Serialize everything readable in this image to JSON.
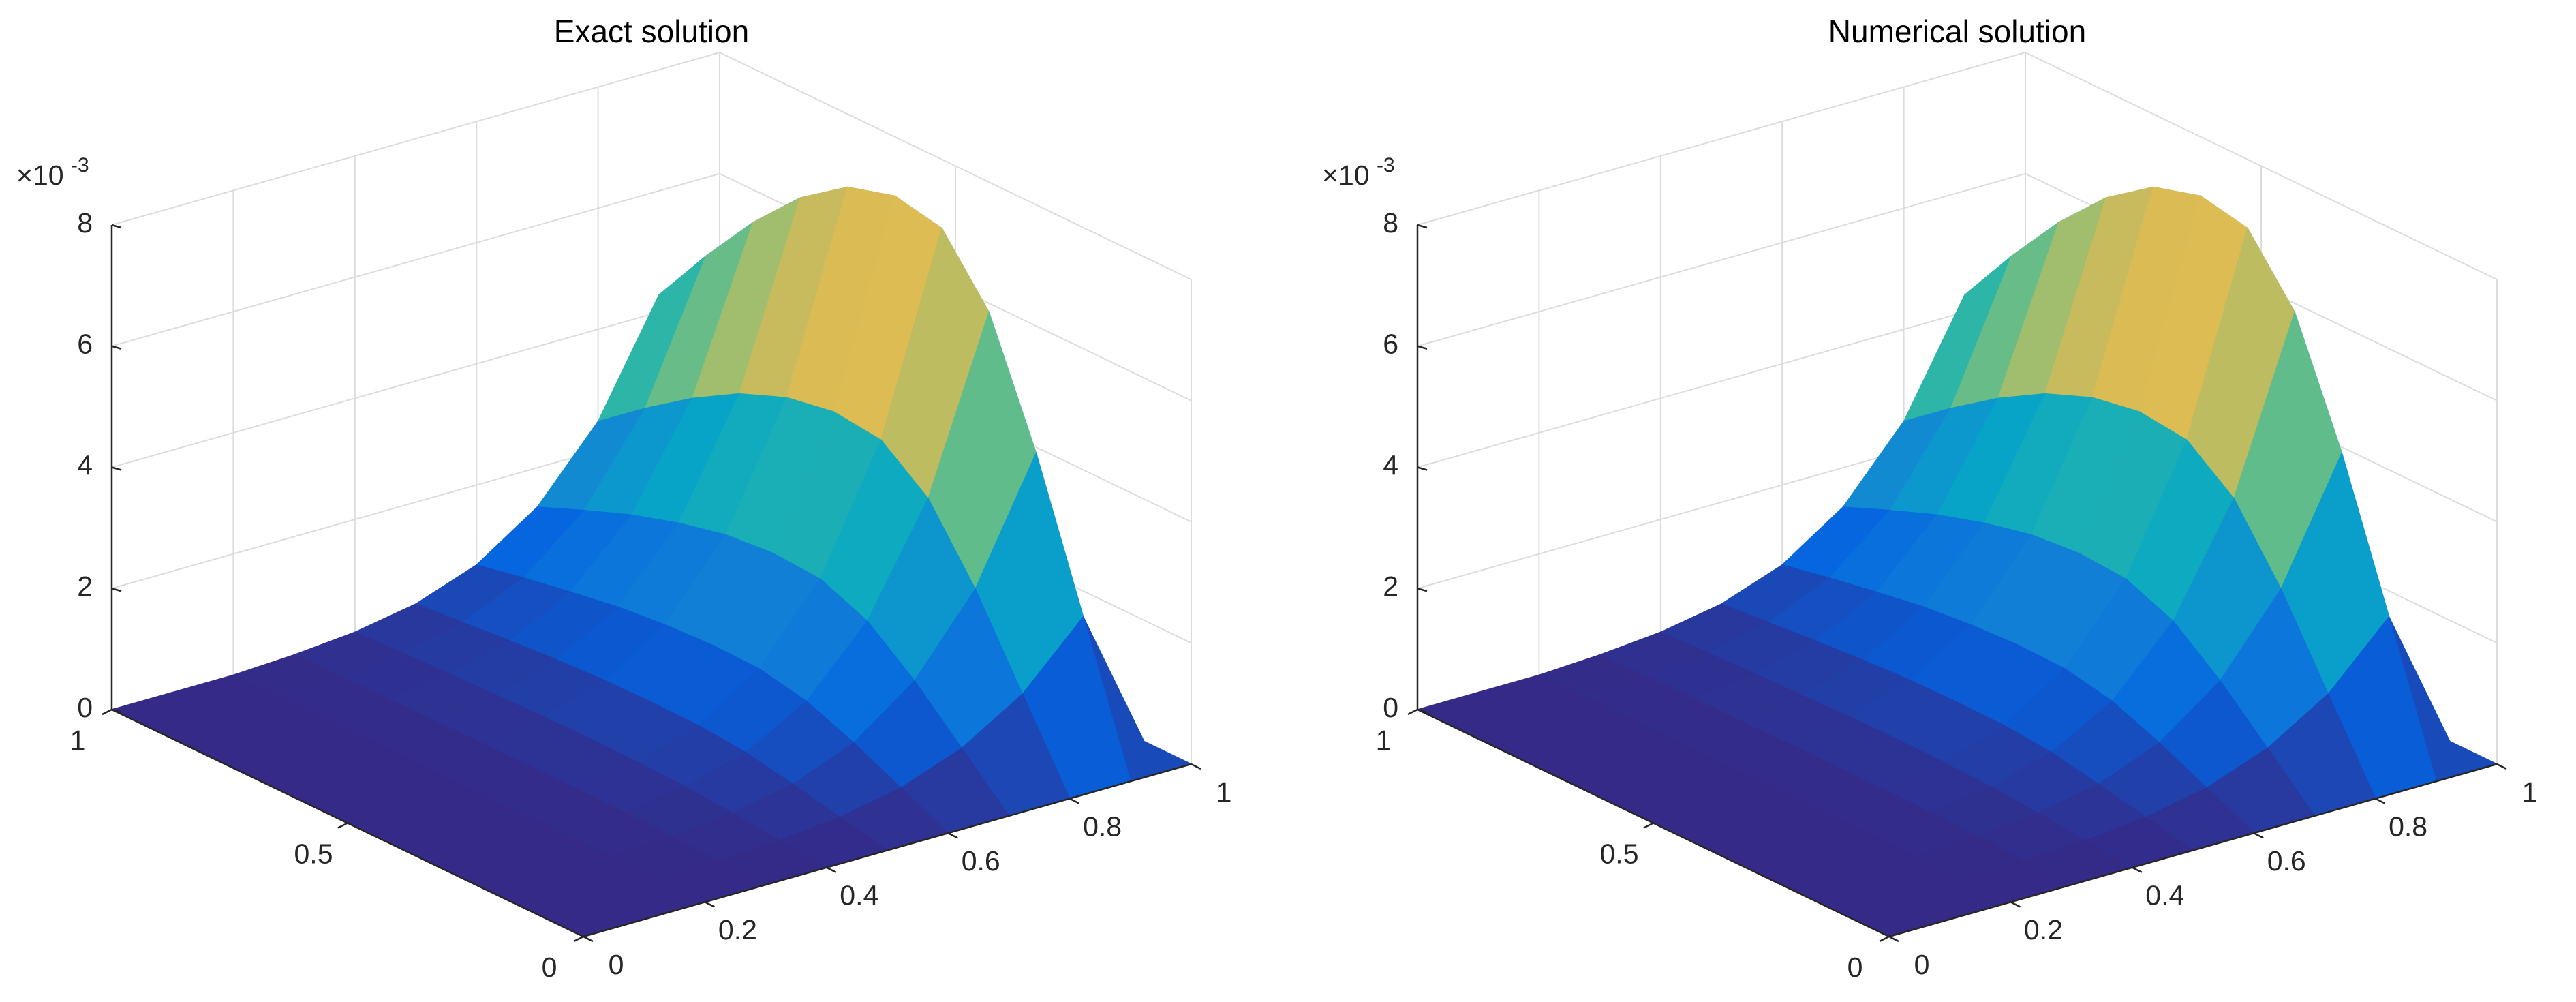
{
  "chart_data": [
    {
      "type": "surface",
      "title": "Exact solution",
      "colormap": "parula",
      "grid": true,
      "z_scale_label": {
        "base": "×10",
        "exponent": "-3"
      },
      "x": [
        0,
        0.1,
        0.2,
        0.3,
        0.4,
        0.5,
        0.6,
        0.7,
        0.8,
        0.9,
        1
      ],
      "y": [
        0,
        0.1,
        0.2,
        0.3,
        0.4,
        0.5,
        0.6,
        0.7,
        0.8,
        0.9,
        1
      ],
      "z": [
        [
          0,
          0,
          0,
          0,
          0,
          0,
          0,
          0,
          0,
          0,
          0
        ],
        [
          0,
          0,
          0,
          0.02,
          0.07,
          0.17,
          0.37,
          0.74,
          1.35,
          2.34,
          0
        ],
        [
          0,
          0,
          0,
          0.05,
          0.15,
          0.34,
          0.74,
          1.48,
          2.71,
          4.67,
          0
        ],
        [
          0,
          0,
          0,
          0.07,
          0.21,
          0.49,
          1.05,
          2.09,
          3.83,
          6.62,
          0
        ],
        [
          0,
          0,
          0,
          0.08,
          0.24,
          0.56,
          1.21,
          2.41,
          4.42,
          7.63,
          0
        ],
        [
          0,
          0,
          0,
          0.08,
          0.25,
          0.57,
          1.23,
          2.46,
          4.51,
          7.79,
          0
        ],
        [
          0,
          0,
          0,
          0.08,
          0.24,
          0.56,
          1.19,
          2.39,
          4.37,
          7.56,
          0
        ],
        [
          0,
          0,
          0,
          0.07,
          0.22,
          0.52,
          1.11,
          2.21,
          4.06,
          7.01,
          0
        ],
        [
          0,
          0,
          0,
          0.07,
          0.2,
          0.46,
          0.98,
          1.97,
          3.61,
          6.23,
          0
        ],
        [
          0,
          0,
          0,
          0.06,
          0.17,
          0.39,
          0.84,
          1.67,
          3.07,
          5.3,
          0
        ],
        [
          0,
          0,
          0,
          0.05,
          0.14,
          0.32,
          0.68,
          1.35,
          2.48,
          4.28,
          0
        ]
      ],
      "xlim": [
        0,
        1
      ],
      "ylim": [
        0,
        1
      ],
      "zlim": [
        0,
        8
      ],
      "xticks": [
        0,
        0.2,
        0.4,
        0.6,
        0.8,
        1
      ],
      "yticks": [
        0,
        0.5,
        1
      ],
      "zticks": [
        0,
        2,
        4,
        6,
        8
      ]
    },
    {
      "type": "surface",
      "title": "Numerical solution",
      "colormap": "parula",
      "grid": true,
      "z_scale_label": {
        "base": "×10",
        "exponent": "-3"
      },
      "x": [
        0,
        0.1,
        0.2,
        0.3,
        0.4,
        0.5,
        0.6,
        0.7,
        0.8,
        0.9,
        1
      ],
      "y": [
        0,
        0.1,
        0.2,
        0.3,
        0.4,
        0.5,
        0.6,
        0.7,
        0.8,
        0.9,
        1
      ],
      "z": [
        [
          0,
          0,
          0,
          0,
          0,
          0,
          0,
          0,
          0,
          0,
          0
        ],
        [
          0,
          0,
          0,
          0.02,
          0.07,
          0.17,
          0.37,
          0.74,
          1.35,
          2.34,
          0
        ],
        [
          0,
          0,
          0,
          0.05,
          0.15,
          0.34,
          0.74,
          1.48,
          2.71,
          4.67,
          0
        ],
        [
          0,
          0,
          0,
          0.07,
          0.21,
          0.49,
          1.05,
          2.09,
          3.83,
          6.62,
          0
        ],
        [
          0,
          0,
          0,
          0.08,
          0.24,
          0.56,
          1.21,
          2.41,
          4.42,
          7.63,
          0
        ],
        [
          0,
          0,
          0,
          0.08,
          0.25,
          0.57,
          1.23,
          2.46,
          4.51,
          7.79,
          0
        ],
        [
          0,
          0,
          0,
          0.08,
          0.24,
          0.56,
          1.19,
          2.39,
          4.37,
          7.56,
          0
        ],
        [
          0,
          0,
          0,
          0.07,
          0.22,
          0.52,
          1.11,
          2.21,
          4.06,
          7.01,
          0
        ],
        [
          0,
          0,
          0,
          0.07,
          0.2,
          0.46,
          0.98,
          1.97,
          3.61,
          6.23,
          0
        ],
        [
          0,
          0,
          0,
          0.06,
          0.17,
          0.39,
          0.84,
          1.67,
          3.07,
          5.3,
          0
        ],
        [
          0,
          0,
          0,
          0.05,
          0.14,
          0.32,
          0.68,
          1.35,
          2.48,
          4.28,
          0
        ]
      ],
      "xlim": [
        0,
        1
      ],
      "ylim": [
        0,
        1
      ],
      "zlim": [
        0,
        8
      ],
      "xticks": [
        0,
        0.2,
        0.4,
        0.6,
        0.8,
        1
      ],
      "yticks": [
        0,
        0.5,
        1
      ],
      "zticks": [
        0,
        2,
        4,
        6,
        8
      ]
    }
  ]
}
